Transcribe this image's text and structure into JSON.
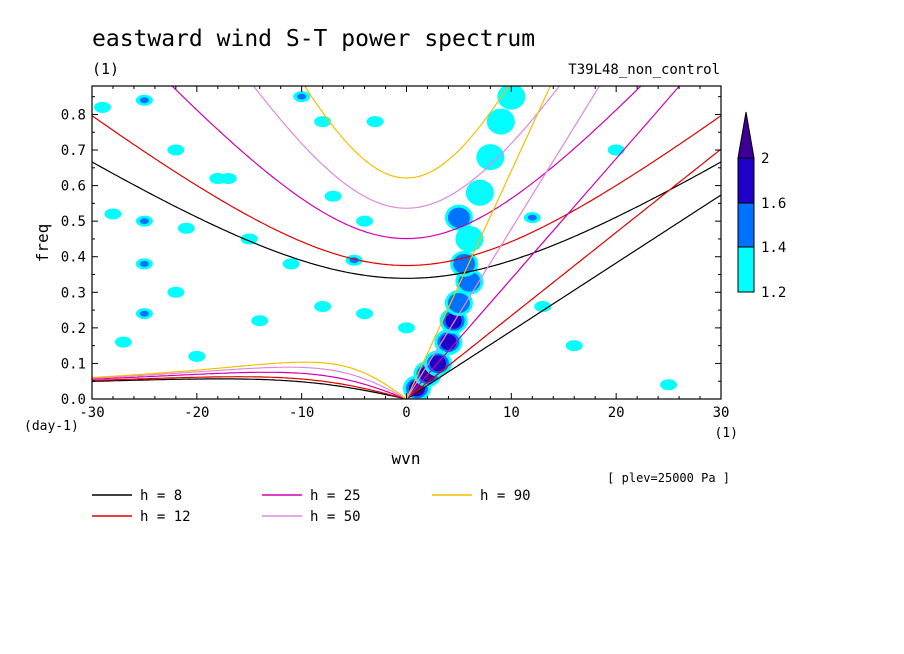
{
  "chart_data": {
    "type": "contour",
    "title": "eastward wind S-T power spectrum",
    "subtitle_left": "(1)",
    "subtitle_right": "T39L48_non_control",
    "xlabel": "wvn",
    "ylabel": "freq",
    "x_unit": "(1)",
    "y_unit": "(day-1)",
    "xlim": [
      -30,
      30
    ],
    "ylim": [
      0,
      0.88
    ],
    "x_ticks": [
      -30,
      -20,
      -10,
      0,
      10,
      20,
      30
    ],
    "x_tick_labels": [
      "-30",
      "-20",
      "-10",
      "0",
      "10",
      "20",
      "30"
    ],
    "y_ticks": [
      0,
      0.1,
      0.2,
      0.3,
      0.4,
      0.5,
      0.6,
      0.7,
      0.8
    ],
    "y_tick_labels": [
      "0.0",
      "0.1",
      "0.2",
      "0.3",
      "0.4",
      "0.5",
      "0.6",
      "0.7",
      "0.8"
    ],
    "annotation": "[ plev=25000 Pa ]",
    "colorbar": {
      "levels": [
        "1.2",
        "1.4",
        "1.6",
        "2"
      ],
      "colors": [
        "#00ffff",
        "#0072ff",
        "#1e00c8",
        "#3c0096"
      ]
    },
    "dispersion_curves": [
      {
        "name": "h =  8",
        "h": 8,
        "color": "#000000"
      },
      {
        "name": "h = 12",
        "h": 12,
        "color": "#e00000"
      },
      {
        "name": "h = 25",
        "h": 25,
        "color": "#d000b0"
      },
      {
        "name": "h = 50",
        "h": 50,
        "color": "#e088e0"
      },
      {
        "name": "h = 90",
        "h": 90,
        "color": "#f0c000"
      }
    ],
    "legend": [
      {
        "label": "h =  8",
        "color": "#000000"
      },
      {
        "label": "h = 12",
        "color": "#e00000"
      },
      {
        "label": "h = 25",
        "color": "#d000b0"
      },
      {
        "label": "h = 50",
        "color": "#e088e0"
      },
      {
        "label": "h = 90",
        "color": "#f0c000"
      }
    ],
    "kelvin_power_ridge": {
      "description": "high power along Kelvin wave line",
      "points": [
        {
          "k": 1,
          "f": 0.03,
          "level": 4
        },
        {
          "k": 2,
          "f": 0.07,
          "level": 4
        },
        {
          "k": 3,
          "f": 0.1,
          "level": 3
        },
        {
          "k": 4,
          "f": 0.16,
          "level": 3
        },
        {
          "k": 4.5,
          "f": 0.22,
          "level": 3
        },
        {
          "k": 5,
          "f": 0.27,
          "level": 2
        },
        {
          "k": 6,
          "f": 0.33,
          "level": 2
        },
        {
          "k": 5.5,
          "f": 0.38,
          "level": 2
        },
        {
          "k": 6,
          "f": 0.45,
          "level": 1
        },
        {
          "k": 5,
          "f": 0.51,
          "level": 2
        },
        {
          "k": 7,
          "f": 0.58,
          "level": 1
        },
        {
          "k": 8,
          "f": 0.68,
          "level": 1
        },
        {
          "k": 9,
          "f": 0.78,
          "level": 1
        },
        {
          "k": 10,
          "f": 0.85,
          "level": 1
        }
      ]
    },
    "scattered_patches": [
      {
        "k": -29,
        "f": 0.82,
        "level": 1
      },
      {
        "k": -25,
        "f": 0.84,
        "level": 2
      },
      {
        "k": -22,
        "f": 0.7,
        "level": 1
      },
      {
        "k": -18,
        "f": 0.62,
        "level": 1
      },
      {
        "k": -25,
        "f": 0.5,
        "level": 2
      },
      {
        "k": -28,
        "f": 0.52,
        "level": 1
      },
      {
        "k": -21,
        "f": 0.48,
        "level": 1
      },
      {
        "k": -15,
        "f": 0.45,
        "level": 1
      },
      {
        "k": -25,
        "f": 0.38,
        "level": 2
      },
      {
        "k": -11,
        "f": 0.38,
        "level": 1
      },
      {
        "k": -10,
        "f": 0.85,
        "level": 2
      },
      {
        "k": -8,
        "f": 0.78,
        "level": 1
      },
      {
        "k": -7,
        "f": 0.57,
        "level": 1
      },
      {
        "k": -4,
        "f": 0.5,
        "level": 1
      },
      {
        "k": -5,
        "f": 0.39,
        "level": 2
      },
      {
        "k": -14,
        "f": 0.22,
        "level": 1
      },
      {
        "k": -8,
        "f": 0.26,
        "level": 1
      },
      {
        "k": -4,
        "f": 0.24,
        "level": 1
      },
      {
        "k": -25,
        "f": 0.24,
        "level": 2
      },
      {
        "k": -27,
        "f": 0.16,
        "level": 1
      },
      {
        "k": -17,
        "f": 0.62,
        "level": 1
      },
      {
        "k": -3,
        "f": 0.78,
        "level": 1
      },
      {
        "k": 0,
        "f": 0.2,
        "level": 1
      },
      {
        "k": 12,
        "f": 0.51,
        "level": 2
      },
      {
        "k": 13,
        "f": 0.26,
        "level": 1
      },
      {
        "k": 20,
        "f": 0.7,
        "level": 1
      },
      {
        "k": 16,
        "f": 0.15,
        "level": 1
      },
      {
        "k": 25,
        "f": 0.04,
        "level": 1
      },
      {
        "k": -20,
        "f": 0.12,
        "level": 1
      },
      {
        "k": -22,
        "f": 0.3,
        "level": 1
      }
    ]
  }
}
